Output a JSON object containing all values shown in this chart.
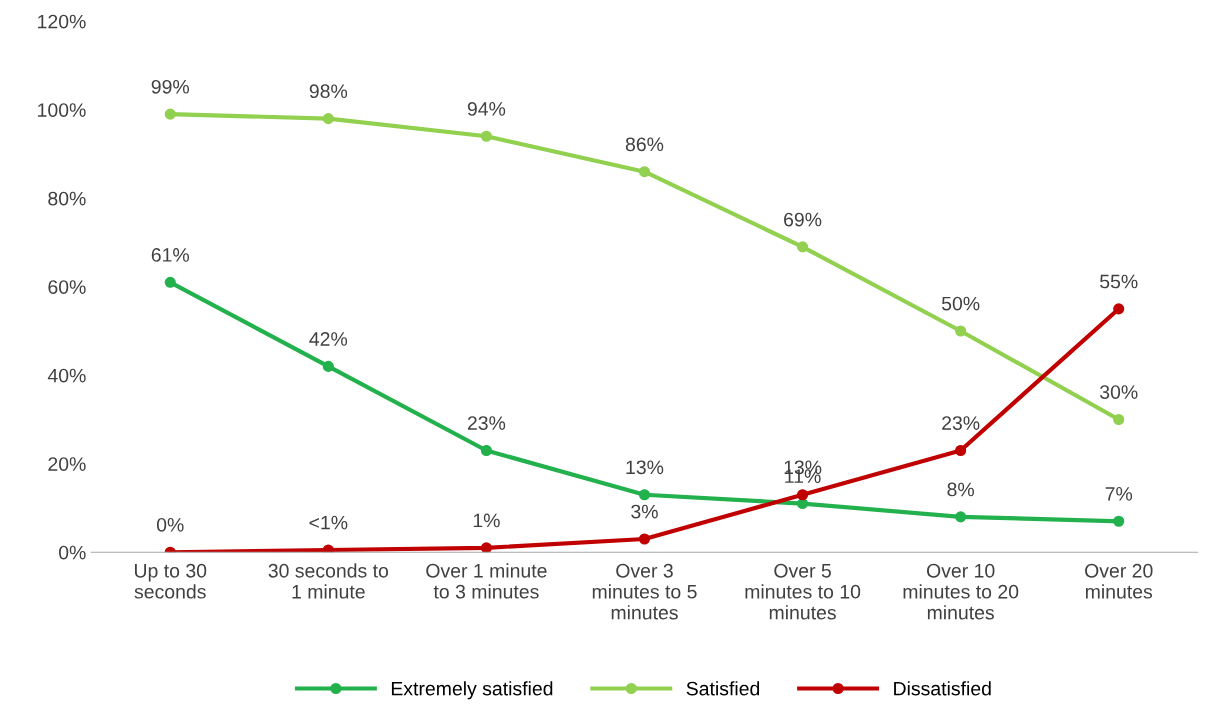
{
  "chart_data": {
    "type": "line",
    "categories": [
      "Up to 30\nseconds",
      "30 seconds to\n1 minute",
      "Over 1 minute\nto 3 minutes",
      "Over 3\nminutes to 5\nminutes",
      "Over 5\nminutes to 10\nminutes",
      "Over 10\nminutes to 20\nminutes",
      "Over 20\nminutes"
    ],
    "series": [
      {
        "name": "Extremely satisfied",
        "color": "#23b14d",
        "values": [
          61,
          42,
          23,
          13,
          11,
          8,
          7
        ],
        "value_labels": [
          "61%",
          "42%",
          "23%",
          "13%",
          "11%",
          "8%",
          "7%"
        ]
      },
      {
        "name": "Satisfied",
        "color": "#92d050",
        "values": [
          99,
          98,
          94,
          86,
          69,
          50,
          30
        ],
        "value_labels": [
          "99%",
          "98%",
          "94%",
          "86%",
          "69%",
          "50%",
          "30%"
        ]
      },
      {
        "name": "Dissatisfied",
        "color": "#c00000",
        "values": [
          0,
          0.5,
          1,
          3,
          13,
          23,
          55
        ],
        "value_labels": [
          "0%",
          "<1%",
          "1%",
          "3%",
          "13%",
          "23%",
          "55%"
        ]
      }
    ],
    "ylim": [
      0,
      120
    ],
    "yticks": [
      {
        "value": 0,
        "label": "0%"
      },
      {
        "value": 20,
        "label": "20%"
      },
      {
        "value": 40,
        "label": "40%"
      },
      {
        "value": 60,
        "label": "60%"
      },
      {
        "value": 80,
        "label": "80%"
      },
      {
        "value": 100,
        "label": "100%"
      },
      {
        "value": 120,
        "label": "120%"
      }
    ],
    "grid": false,
    "legend": "bottom",
    "marker": "circle",
    "line_style": "solid"
  }
}
